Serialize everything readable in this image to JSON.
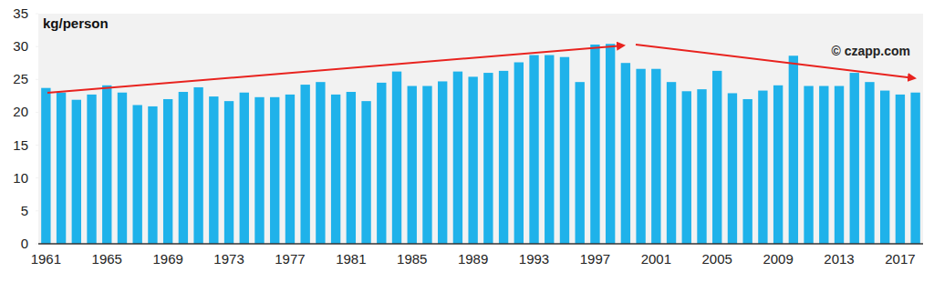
{
  "chart_data": {
    "type": "bar",
    "title": "kg/person",
    "annotations": [
      "© czapp.com"
    ],
    "categories": [
      "1961",
      null,
      null,
      null,
      "1965",
      null,
      null,
      null,
      "1969",
      null,
      null,
      null,
      "1973",
      null,
      null,
      null,
      "1977",
      null,
      null,
      null,
      "1981",
      null,
      null,
      null,
      "1985",
      null,
      null,
      null,
      "1989",
      null,
      null,
      null,
      "1993",
      null,
      null,
      null,
      "1997",
      null,
      null,
      null,
      "2001",
      null,
      null,
      null,
      "2005",
      null,
      null,
      null,
      "2009",
      null,
      null,
      null,
      "2013",
      null,
      null,
      null,
      "2017",
      null
    ],
    "values": [
      23.7,
      23.0,
      21.9,
      22.7,
      24.1,
      23.0,
      21.1,
      20.9,
      22.0,
      23.1,
      23.8,
      22.4,
      21.7,
      23.0,
      22.3,
      22.3,
      22.7,
      24.2,
      24.6,
      22.7,
      23.1,
      21.7,
      24.5,
      26.2,
      24.0,
      24.0,
      24.7,
      26.2,
      25.4,
      26.0,
      26.3,
      27.6,
      28.7,
      28.7,
      28.4,
      24.6,
      30.3,
      30.4,
      27.5,
      26.6,
      26.6,
      24.6,
      23.2,
      23.5,
      26.3,
      22.9,
      22.0,
      23.3,
      24.1,
      28.6,
      24.0,
      24.0,
      24.0,
      26.0,
      24.6,
      23.3,
      22.7,
      23.0
    ],
    "color": "#1fb2ea",
    "ylim": [
      0,
      35
    ],
    "yticks": [
      0,
      5,
      10,
      15,
      20,
      25,
      30,
      35
    ],
    "grid": false
  }
}
